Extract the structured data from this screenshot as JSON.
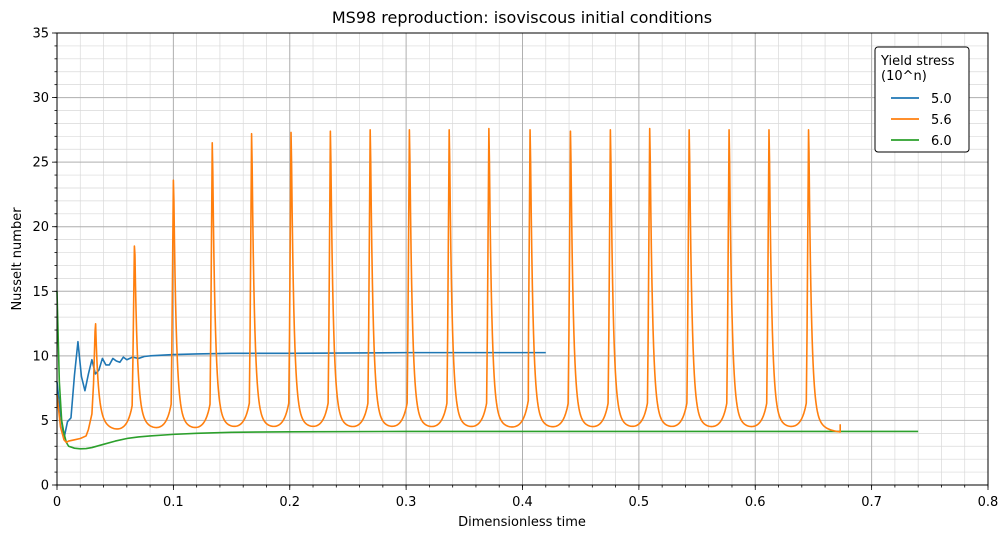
{
  "chart_data": {
    "type": "line",
    "title": "MS98 reproduction: isoviscous initial conditions",
    "xlabel": "Dimensionless time",
    "ylabel": "Nusselt number",
    "xlim": [
      0,
      0.8
    ],
    "ylim": [
      0,
      35
    ],
    "xticks": [
      0,
      0.1,
      0.2,
      0.3,
      0.4,
      0.5,
      0.6,
      0.7,
      0.8
    ],
    "xtick_labels": [
      "0",
      "0.1",
      "0.2",
      "0.3",
      "0.4",
      "0.5",
      "0.6",
      "0.7",
      "0.8"
    ],
    "yticks": [
      0,
      5,
      10,
      15,
      20,
      25,
      30,
      35
    ],
    "ytick_labels": [
      "0",
      "5",
      "10",
      "15",
      "20",
      "25",
      "30",
      "35"
    ],
    "grid": "major and minor",
    "legend": {
      "title": "Yield stress\n(10^n)",
      "placement": "top-right"
    },
    "series": [
      {
        "name": "5.0",
        "color": "#1f77b4",
        "x": [
          0,
          0.003,
          0.006,
          0.009,
          0.012,
          0.015,
          0.018,
          0.021,
          0.024,
          0.027,
          0.03,
          0.033,
          0.036,
          0.039,
          0.042,
          0.045,
          0.048,
          0.051,
          0.054,
          0.057,
          0.06,
          0.065,
          0.07,
          0.075,
          0.08,
          0.09,
          0.1,
          0.12,
          0.15,
          0.2,
          0.3,
          0.42
        ],
        "y": [
          8,
          5.5,
          3.6,
          4.9,
          5.2,
          8.5,
          11.1,
          8.4,
          7.3,
          8.6,
          9.7,
          8.6,
          8.9,
          9.8,
          9.3,
          9.3,
          9.8,
          9.6,
          9.5,
          9.9,
          9.7,
          9.9,
          9.8,
          9.95,
          10.0,
          10.05,
          10.1,
          10.15,
          10.2,
          10.2,
          10.25,
          10.25
        ]
      },
      {
        "name": "5.6",
        "color": "#ff7f0e",
        "base_curve": {
          "x": [
            0,
            0.003,
            0.006,
            0.008,
            0.01,
            0.015,
            0.02,
            0.025,
            0.027,
            0.03
          ],
          "y": [
            7,
            4.5,
            3.5,
            3.3,
            3.4,
            3.5,
            3.6,
            3.8,
            4.3,
            5.5
          ]
        },
        "spike_times": [
          0.0327,
          0.0665,
          0.1,
          0.1334,
          0.1672,
          0.2011,
          0.2349,
          0.2691,
          0.3028,
          0.337,
          0.3711,
          0.4065,
          0.4412,
          0.4755,
          0.5093,
          0.5432,
          0.5775,
          0.6118,
          0.6458
        ],
        "spike_peaks": [
          11.9,
          18.5,
          23.6,
          26.5,
          27.2,
          27.3,
          27.4,
          27.5,
          27.5,
          27.5,
          27.6,
          27.5,
          27.4,
          27.5,
          27.6,
          27.5,
          27.5,
          27.5,
          27.5
        ],
        "trough_values": [
          3.8,
          3.9,
          3.9,
          4.0,
          4.0,
          4.0,
          4.0,
          4.0,
          4.0,
          4.0,
          4.0,
          4.0,
          4.0,
          4.0,
          4.0,
          4.0,
          4.0,
          4.0,
          4.0
        ],
        "end": {
          "x": 0.673,
          "y": 4.7
        }
      },
      {
        "name": "6.0",
        "color": "#2ca02c",
        "x": [
          0,
          0.002,
          0.004,
          0.006,
          0.008,
          0.01,
          0.015,
          0.02,
          0.025,
          0.03,
          0.04,
          0.05,
          0.06,
          0.07,
          0.08,
          0.1,
          0.12,
          0.15,
          0.2,
          0.3,
          0.5,
          0.74
        ],
        "y": [
          15,
          8,
          5,
          4,
          3.3,
          3.0,
          2.85,
          2.8,
          2.82,
          2.9,
          3.15,
          3.4,
          3.6,
          3.72,
          3.8,
          3.92,
          4.0,
          4.08,
          4.12,
          4.15,
          4.15,
          4.15
        ]
      }
    ]
  }
}
